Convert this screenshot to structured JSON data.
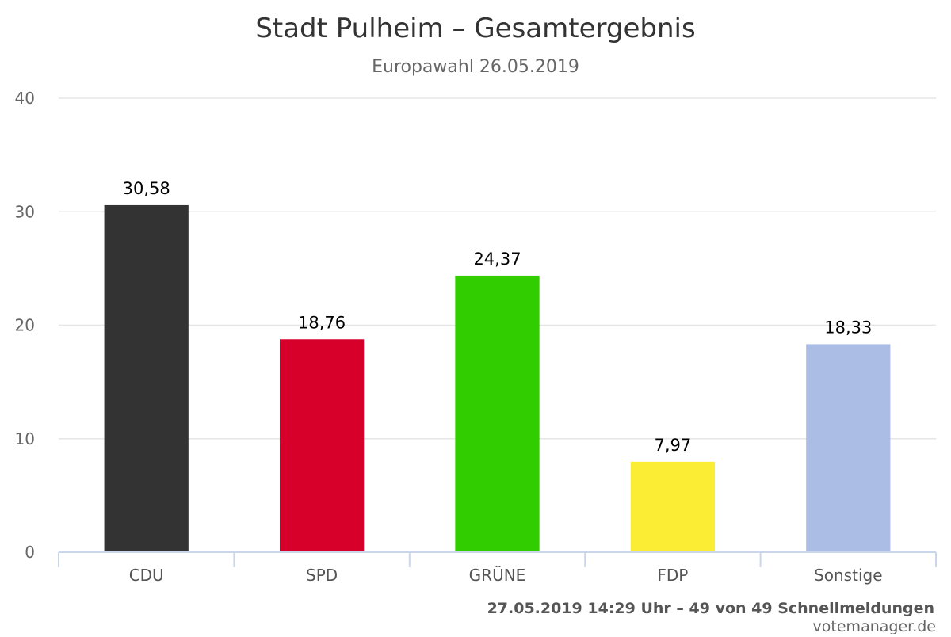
{
  "chart_data": {
    "type": "bar",
    "title": "Stadt Pulheim – Gesamtergebnis",
    "subtitle": "Europawahl 26.05.2019",
    "xlabel": "",
    "ylabel": "",
    "categories": [
      "CDU",
      "SPD",
      "GRÜNE",
      "FDP",
      "Sonstige"
    ],
    "values": [
      30.58,
      18.76,
      24.37,
      7.97,
      18.33
    ],
    "value_labels": [
      "30,58",
      "18,76",
      "24,37",
      "7,97",
      "18,33"
    ],
    "colors": [
      "#333333",
      "#d7002a",
      "#32cd00",
      "#fbed34",
      "#abbde4"
    ],
    "ylim": [
      0,
      40
    ],
    "yticks": [
      0,
      10,
      20,
      30,
      40
    ],
    "grid": true,
    "legend": "none"
  },
  "footer": {
    "status": "27.05.2019 14:29 Uhr – 49 von 49 Schnellmeldungen",
    "site": "votemanager.de"
  }
}
